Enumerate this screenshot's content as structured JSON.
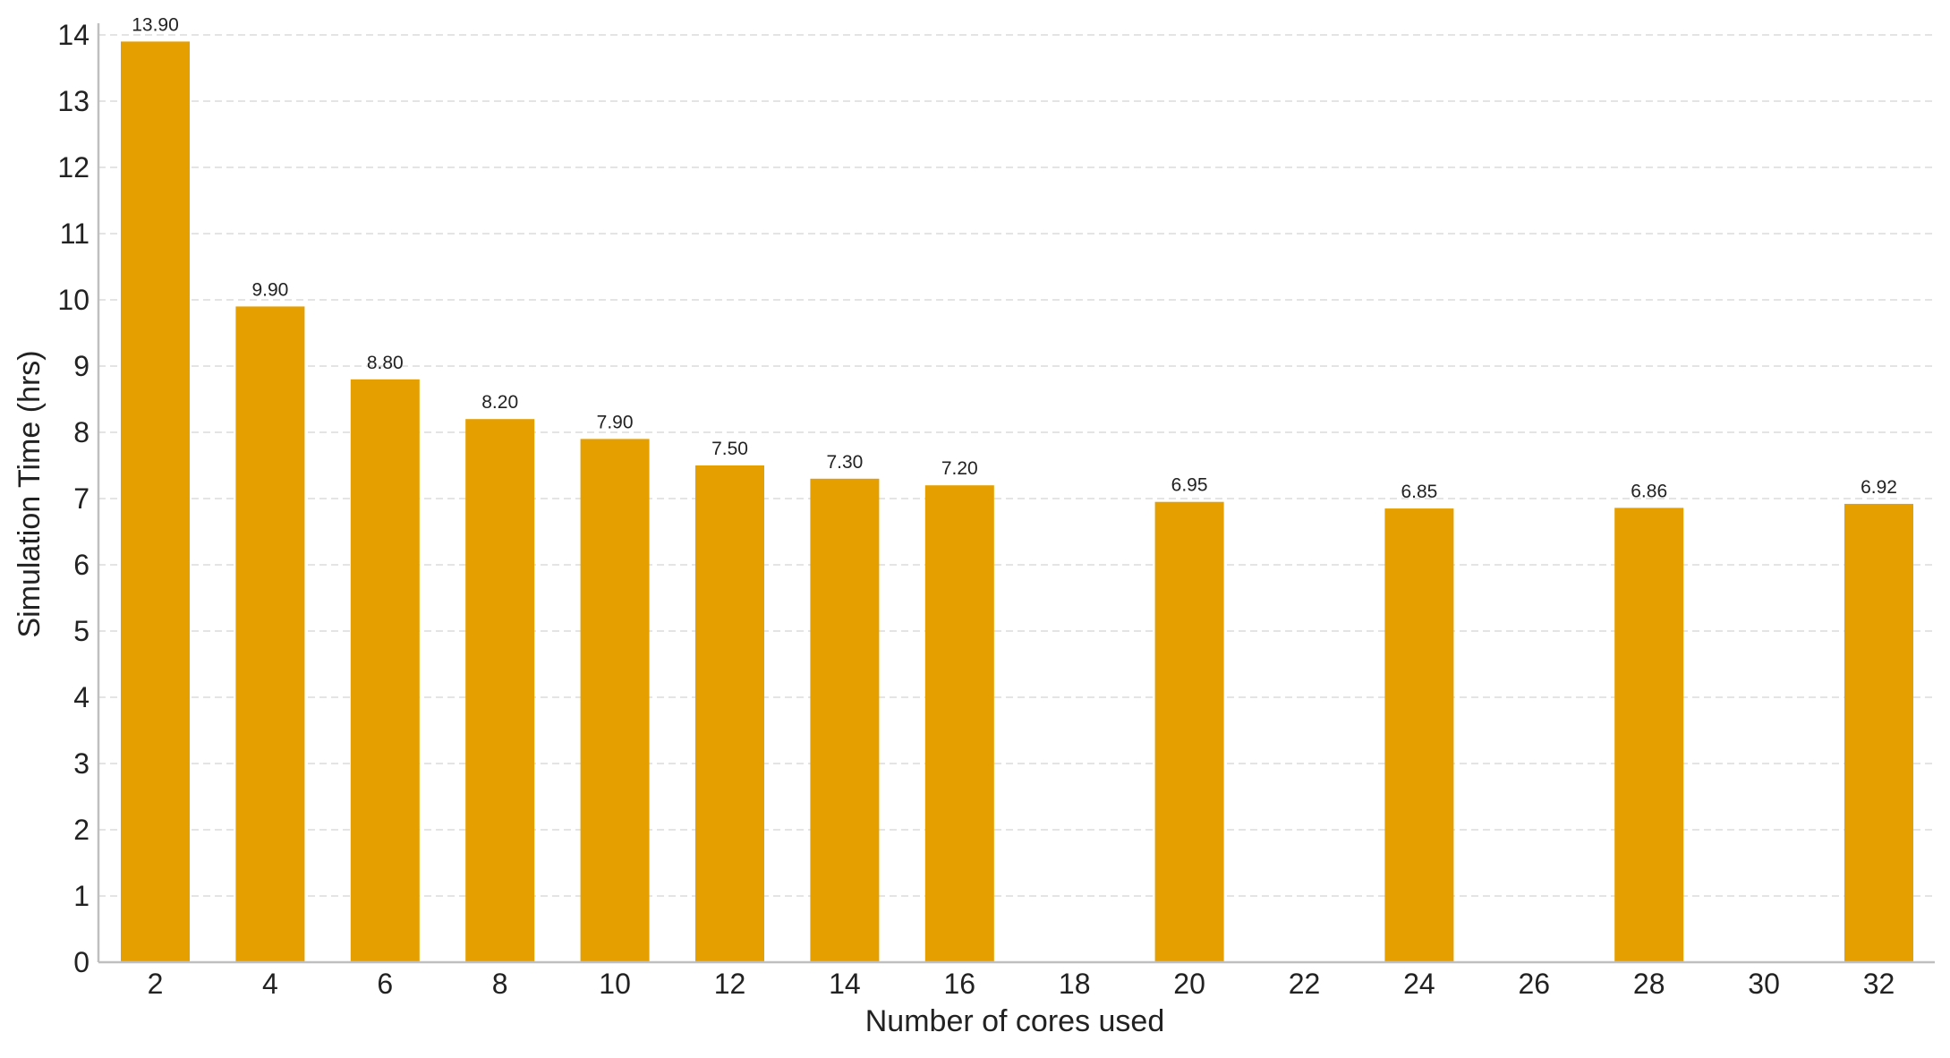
{
  "chart_data": {
    "type": "bar",
    "title": "",
    "xlabel": "Number of cores used",
    "ylabel": "Simulation Time (hrs)",
    "categories": [
      2,
      4,
      6,
      8,
      10,
      12,
      14,
      16,
      18,
      20,
      22,
      24,
      26,
      28,
      30,
      32
    ],
    "values": [
      13.9,
      9.9,
      8.8,
      8.2,
      7.9,
      7.5,
      7.3,
      7.2,
      null,
      6.95,
      null,
      6.85,
      null,
      6.86,
      null,
      6.92
    ],
    "data_labels": [
      "13.90",
      "9.90",
      "8.80",
      "8.20",
      "7.90",
      "7.50",
      "7.30",
      "7.20",
      "",
      "6.95",
      "",
      "6.85",
      "",
      "6.86",
      "",
      "6.92"
    ],
    "ylim": [
      0,
      14.2
    ],
    "yticks": [
      0,
      1,
      2,
      3,
      4,
      5,
      6,
      7,
      8,
      9,
      10,
      11,
      12,
      13,
      14
    ],
    "grid": "horizontal-dashed",
    "legend": "none",
    "colors": {
      "bar": "#E5A000",
      "grid": "#dcdcdc",
      "axis": "#bfbfbf",
      "text": "#222222"
    }
  }
}
